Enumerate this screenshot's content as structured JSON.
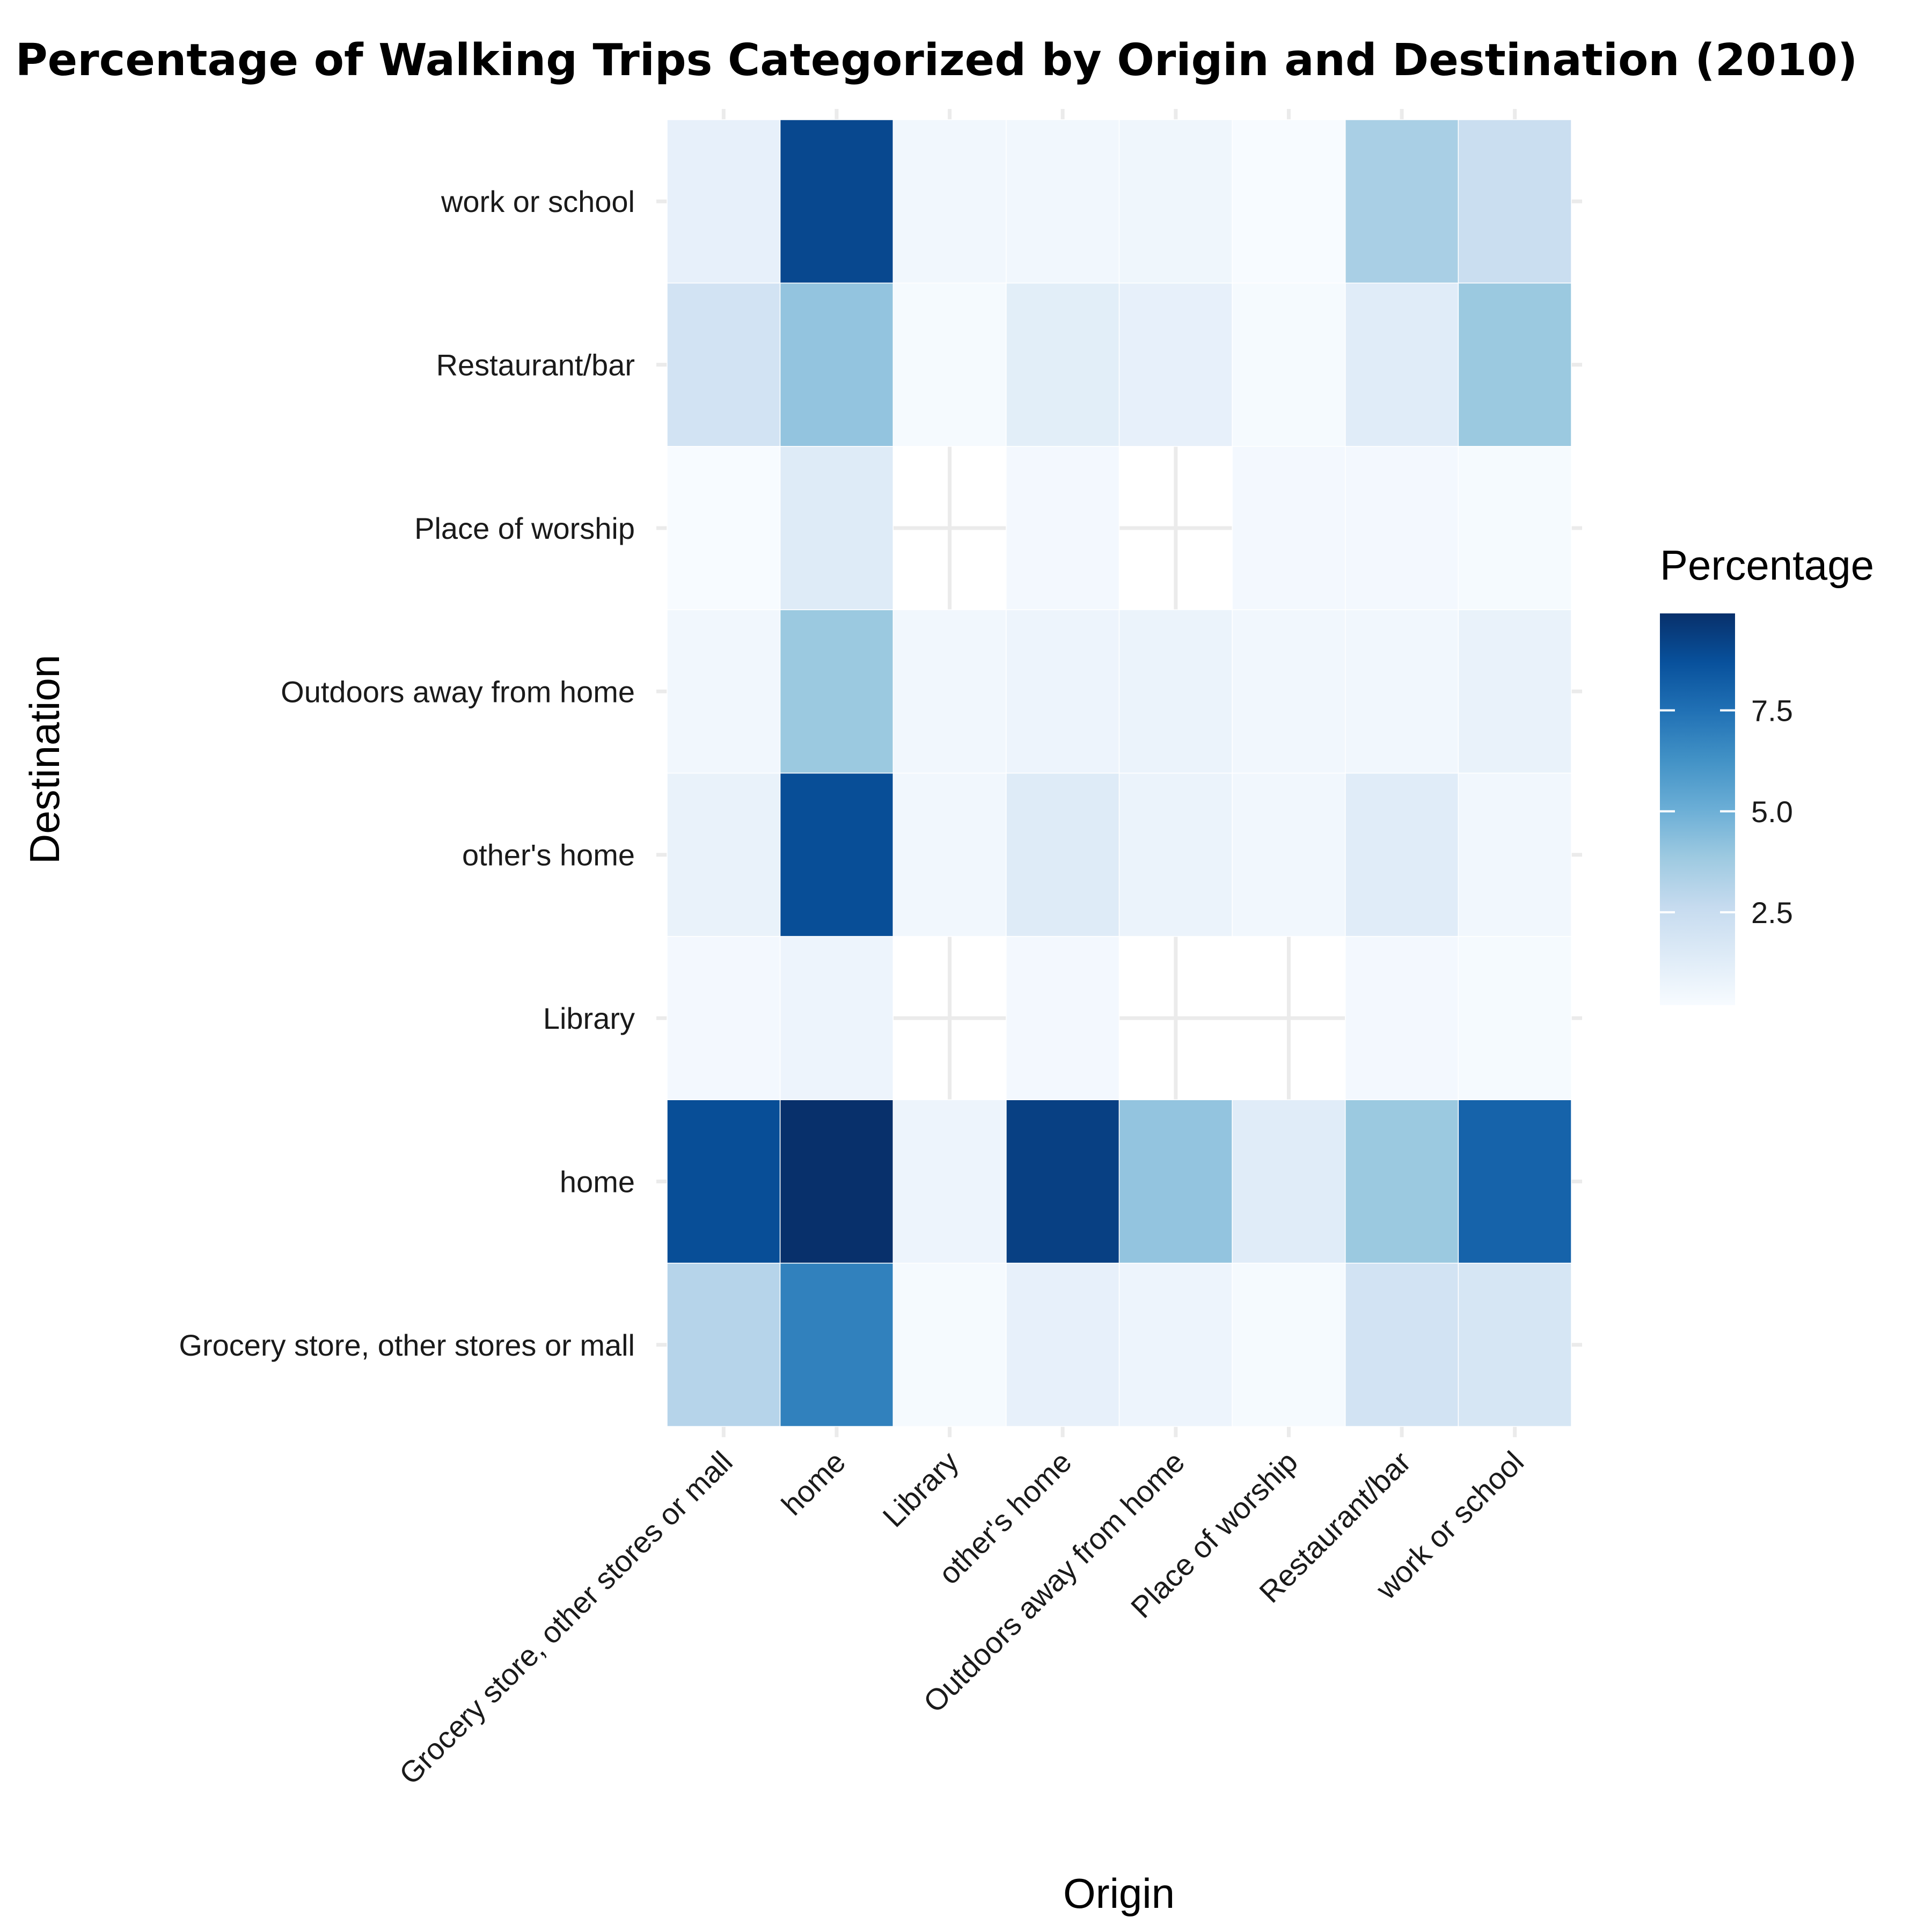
{
  "chart_data": {
    "type": "heatmap",
    "title": "Percentage of Walking Trips Categorized by Origin and Destination (2010)",
    "xlabel": "Origin",
    "ylabel": "Destination",
    "x_categories": [
      "Grocery store, other stores or mall",
      "home",
      "Library",
      "other's home",
      "Outdoors away from home",
      "Place of worship",
      "Restaurant/bar",
      "work or school"
    ],
    "y_categories": [
      "Grocery store, other stores or mall",
      "home",
      "Library",
      "other's home",
      "Outdoors away from home",
      "Place of worship",
      "Restaurant/bar",
      "work or school"
    ],
    "values": [
      [
        3.1,
        6.9,
        0.3,
        1.0,
        0.7,
        0.3,
        2.0,
        1.8
      ],
      [
        8.8,
        9.9,
        0.7,
        9.3,
        4.1,
        1.3,
        3.9,
        8.0
      ],
      [
        0.4,
        0.7,
        null,
        0.4,
        null,
        null,
        0.4,
        0.3
      ],
      [
        0.9,
        8.8,
        0.5,
        1.4,
        0.8,
        0.5,
        1.3,
        0.5
      ],
      [
        0.5,
        3.9,
        0.5,
        0.7,
        0.8,
        0.5,
        0.5,
        0.9
      ],
      [
        0.2,
        1.4,
        null,
        0.4,
        null,
        0.4,
        0.4,
        0.3
      ],
      [
        2.0,
        4.1,
        0.3,
        1.2,
        1.0,
        0.3,
        1.3,
        3.9
      ],
      [
        1.0,
        9.0,
        0.5,
        0.5,
        0.6,
        0.2,
        3.5,
        2.4
      ]
    ],
    "legend": {
      "title": "Percentage",
      "ticks": [
        "2.5",
        "5.0",
        "7.5"
      ],
      "tick_values": [
        2.5,
        5.0,
        7.5
      ],
      "min": 0.2,
      "max": 9.9,
      "placement": "right"
    },
    "colormap": "Blues",
    "grid": true
  }
}
